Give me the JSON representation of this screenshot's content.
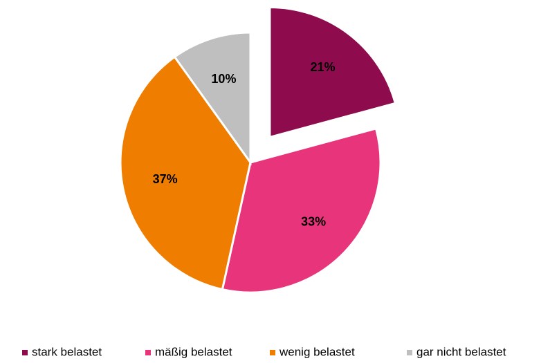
{
  "chart_data": {
    "type": "pie",
    "categories": [
      "stark belastet",
      "mäßig belastet",
      "wenig belastet",
      "gar nicht belastet"
    ],
    "values": [
      21,
      33,
      37,
      10
    ],
    "value_labels": [
      "21%",
      "33%",
      "37%",
      "10%"
    ],
    "colors": [
      "#8e0c4e",
      "#e8347a",
      "#ef7d00",
      "#bfbfbf"
    ],
    "exploded": [
      0
    ],
    "legend": "bottom"
  }
}
